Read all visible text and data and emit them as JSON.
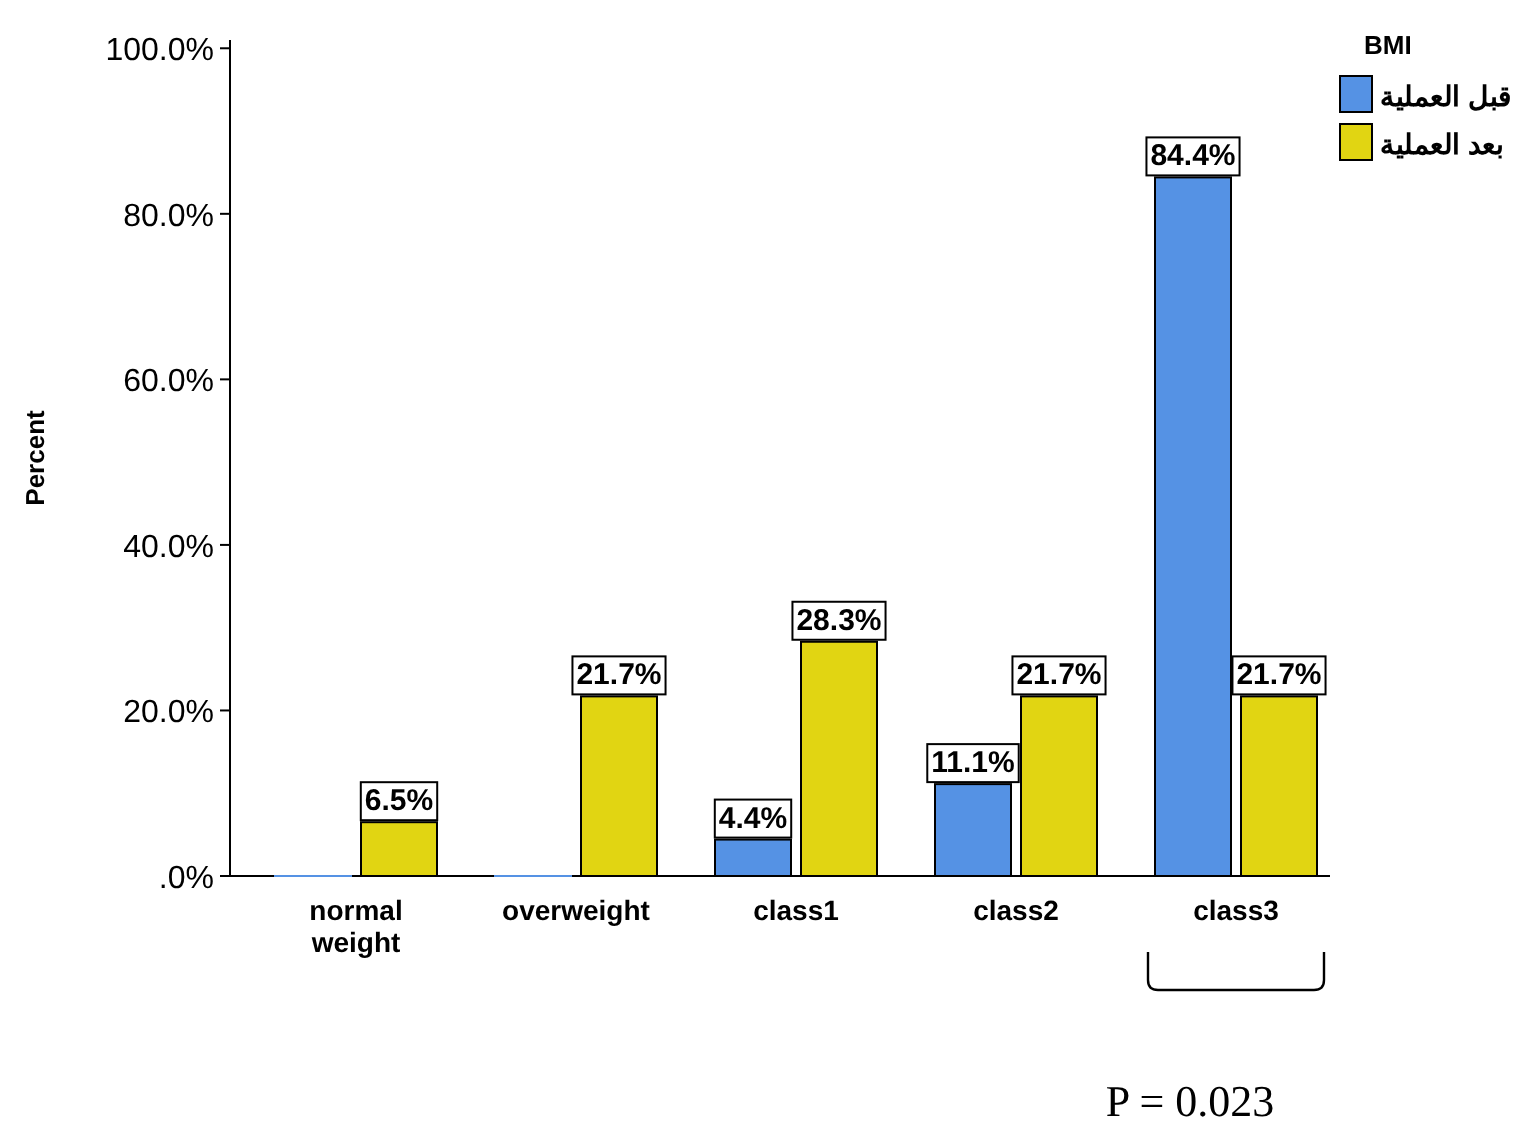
{
  "chart_data": {
    "type": "bar",
    "ylabel": "Percent",
    "legend_title": "BMI",
    "legend": "top right",
    "categories": [
      "normal\nweight",
      "overweight",
      "class1",
      "class2",
      "class3"
    ],
    "series": [
      {
        "name": "قبل العملية",
        "color": "#5592e4",
        "values": [
          0,
          0,
          4.4,
          11.1,
          84.4
        ],
        "value_labels": [
          null,
          null,
          "4.4%",
          "11.1%",
          "84.4%"
        ]
      },
      {
        "name": "بعد العملية",
        "color": "#e1d512",
        "values": [
          6.5,
          21.7,
          28.3,
          21.7,
          21.7
        ],
        "value_labels": [
          "6.5%",
          "21.7%",
          "28.3%",
          "21.7%",
          "21.7%"
        ]
      }
    ],
    "ylim": [
      0,
      101
    ],
    "yticks": [
      {
        "value": 0,
        "label": ".0%"
      },
      {
        "value": 20,
        "label": "20.0%"
      },
      {
        "value": 40,
        "label": "40.0%"
      },
      {
        "value": 60,
        "label": "60.0%"
      },
      {
        "value": 80,
        "label": "80.0%"
      },
      {
        "value": 100,
        "label": "100.0%"
      }
    ],
    "grid": false,
    "annotations": [
      "P = 0.023"
    ]
  }
}
